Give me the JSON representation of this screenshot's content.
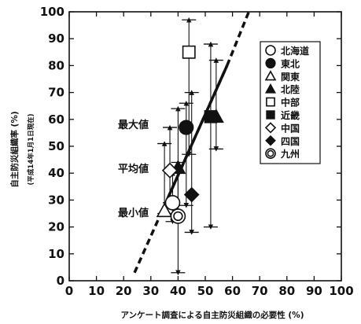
{
  "chart_data": {
    "type": "scatter",
    "title": "",
    "xlabel": "アンケート調査による自主防災組織の必要性 (%)",
    "ylabel": "自主防災組織率 (%)",
    "ylabel_note": "(平成14年1月1日現在)",
    "xlim": [
      0,
      100
    ],
    "ylim": [
      0,
      100
    ],
    "x_ticks": [
      "0",
      "10",
      "20",
      "30",
      "40",
      "50",
      "60",
      "70",
      "80",
      "90",
      "100"
    ],
    "y_ticks": [
      "0",
      "10",
      "20",
      "30",
      "40",
      "50",
      "60",
      "70",
      "80",
      "90",
      "100"
    ],
    "grid": false,
    "legend_position": "top-right",
    "annotations": [
      "最大値",
      "平均値",
      "最小値"
    ],
    "series": [
      {
        "name": "北海道",
        "marker": "circle-open",
        "x": 38,
        "y": 29,
        "min": 22,
        "max": 40
      },
      {
        "name": "東北",
        "marker": "circle-filled",
        "x": 43,
        "y": 57,
        "min": 28,
        "max": 66
      },
      {
        "name": "関東",
        "marker": "triangle-open",
        "x": 35,
        "y": 26,
        "min": 25,
        "max": 51
      },
      {
        "name": "北陸",
        "marker": "triangle-filled",
        "x": 40,
        "y": 42,
        "min": 25,
        "max": 64
      },
      {
        "name": "中部",
        "marker": "square-open",
        "x": 44,
        "y": 85,
        "min": 47,
        "max": 97
      },
      {
        "name": "近畿",
        "marker": "square-filled",
        "x": 52,
        "y": 61,
        "min": 20,
        "max": 88
      },
      {
        "name": "中国",
        "marker": "diamond-open",
        "x": 37,
        "y": 41,
        "min": 29,
        "max": 57
      },
      {
        "name": "四国",
        "marker": "diamond-filled",
        "x": 45,
        "y": 32,
        "min": 18,
        "max": 70
      },
      {
        "name": "九州",
        "marker": "double-circle",
        "x": 40,
        "y": 24,
        "min": 3,
        "max": 44
      },
      {
        "name": "",
        "marker": "triangle-filled",
        "x": 54,
        "y": 61,
        "min": 49,
        "max": 82
      }
    ],
    "regression_line": {
      "points": [
        [
          24,
          3
        ],
        [
          58,
          80
        ]
      ],
      "extension": [
        [
          58,
          80
        ],
        [
          66,
          100
        ]
      ]
    }
  }
}
